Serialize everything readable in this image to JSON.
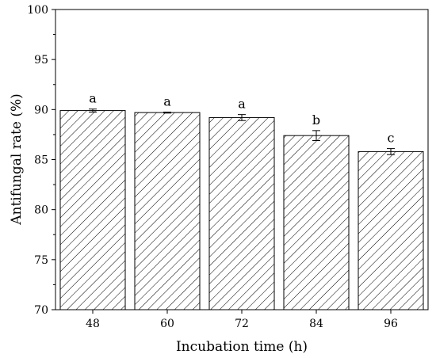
{
  "chart_data": {
    "type": "bar",
    "categories": [
      "48",
      "60",
      "72",
      "84",
      "96"
    ],
    "values": [
      89.9,
      89.7,
      89.2,
      87.4,
      85.8
    ],
    "errors": [
      0.15,
      0.05,
      0.3,
      0.5,
      0.3
    ],
    "significance": [
      "a",
      "a",
      "a",
      "b",
      "c"
    ],
    "xlabel": "Incubation time (h)",
    "ylabel": "Antifungal rate (%)",
    "ylim": [
      70,
      100
    ],
    "yticks": [
      "70",
      "75",
      "80",
      "85",
      "90",
      "95",
      "100"
    ],
    "bar_fill": "hatched diagonal",
    "bar_color": "#000000",
    "grid": false,
    "legend": "none"
  }
}
